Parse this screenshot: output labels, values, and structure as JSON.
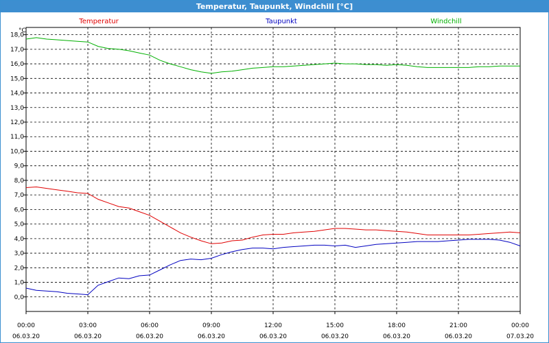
{
  "window": {
    "title": "Temperatur, Taupunkt, Windchill [°C]"
  },
  "chart_data": {
    "type": "line",
    "title": "Temperatur, Taupunkt, Windchill [°C]",
    "unit_label": "°C",
    "ylim": [
      -1.0,
      18.5
    ],
    "yticks": [
      {
        "value": 18,
        "label": "18,0"
      },
      {
        "value": 17,
        "label": "17,0"
      },
      {
        "value": 16,
        "label": "16,0"
      },
      {
        "value": 15,
        "label": "15,0"
      },
      {
        "value": 14,
        "label": "14,0"
      },
      {
        "value": 13,
        "label": "13,0"
      },
      {
        "value": 12,
        "label": "12,0"
      },
      {
        "value": 11,
        "label": "11,0"
      },
      {
        "value": 10,
        "label": "10,0"
      },
      {
        "value": 9,
        "label": "9,0"
      },
      {
        "value": 8,
        "label": "8,0"
      },
      {
        "value": 7,
        "label": "7,0"
      },
      {
        "value": 6,
        "label": "6,0"
      },
      {
        "value": 5,
        "label": "5,0"
      },
      {
        "value": 4,
        "label": "4,0"
      },
      {
        "value": 3,
        "label": "3,0"
      },
      {
        "value": 2,
        "label": "2,0"
      },
      {
        "value": 1,
        "label": "1,0"
      },
      {
        "value": 0,
        "label": "0,0"
      }
    ],
    "xlim": [
      0,
      24
    ],
    "xticks": [
      {
        "value": 0,
        "time": "00:00",
        "date": "06.03.20"
      },
      {
        "value": 3,
        "time": "03:00",
        "date": "06.03.20"
      },
      {
        "value": 6,
        "time": "06:00",
        "date": "06.03.20"
      },
      {
        "value": 9,
        "time": "09:00",
        "date": "06.03.20"
      },
      {
        "value": 12,
        "time": "12:00",
        "date": "06.03.20"
      },
      {
        "value": 15,
        "time": "15:00",
        "date": "06.03.20"
      },
      {
        "value": 18,
        "time": "18:00",
        "date": "06.03.20"
      },
      {
        "value": 21,
        "time": "21:00",
        "date": "06.03.20"
      },
      {
        "value": 24,
        "time": "00:00",
        "date": "07.03.20"
      }
    ],
    "grid": true,
    "legend_position": "top",
    "series": [
      {
        "name": "Temperatur",
        "color": "#e00000",
        "x": [
          0,
          0.5,
          1,
          1.5,
          2,
          2.5,
          3,
          3.5,
          4,
          4.5,
          5,
          5.5,
          6,
          6.5,
          7,
          7.5,
          8,
          8.5,
          9,
          9.5,
          10,
          10.5,
          11,
          11.5,
          12,
          12.5,
          13,
          13.5,
          14,
          14.5,
          15,
          15.5,
          16,
          16.5,
          17,
          17.5,
          18,
          18.5,
          19,
          19.5,
          20,
          20.5,
          21,
          21.5,
          22,
          22.5,
          23,
          23.5,
          24
        ],
        "values": [
          7.5,
          7.55,
          7.45,
          7.35,
          7.25,
          7.15,
          7.1,
          6.7,
          6.45,
          6.2,
          6.1,
          5.85,
          5.6,
          5.2,
          4.8,
          4.4,
          4.1,
          3.85,
          3.65,
          3.7,
          3.85,
          3.9,
          4.1,
          4.25,
          4.3,
          4.3,
          4.4,
          4.45,
          4.5,
          4.6,
          4.7,
          4.7,
          4.65,
          4.6,
          4.6,
          4.55,
          4.5,
          4.45,
          4.35,
          4.25,
          4.25,
          4.25,
          4.25,
          4.25,
          4.3,
          4.35,
          4.4,
          4.45,
          4.4
        ]
      },
      {
        "name": "Taupunkt",
        "color": "#0000c0",
        "x": [
          0,
          0.5,
          1,
          1.5,
          2,
          2.5,
          3,
          3.5,
          4,
          4.5,
          5,
          5.5,
          6,
          6.5,
          7,
          7.5,
          8,
          8.5,
          9,
          9.5,
          10,
          10.5,
          11,
          11.5,
          12,
          12.5,
          13,
          13.5,
          14,
          14.5,
          15,
          15.5,
          16,
          16.5,
          17,
          17.5,
          18,
          18.5,
          19,
          19.5,
          20,
          20.5,
          21,
          21.5,
          22,
          22.5,
          23,
          23.5,
          24
        ],
        "values": [
          0.6,
          0.45,
          0.4,
          0.35,
          0.25,
          0.2,
          0.15,
          0.8,
          1.05,
          1.3,
          1.25,
          1.45,
          1.5,
          1.85,
          2.2,
          2.5,
          2.6,
          2.55,
          2.65,
          2.9,
          3.1,
          3.25,
          3.35,
          3.35,
          3.3,
          3.4,
          3.45,
          3.5,
          3.55,
          3.55,
          3.5,
          3.55,
          3.4,
          3.5,
          3.6,
          3.65,
          3.7,
          3.75,
          3.8,
          3.8,
          3.8,
          3.85,
          3.9,
          3.95,
          3.95,
          3.95,
          3.9,
          3.75,
          3.5
        ]
      },
      {
        "name": "Windchill",
        "color": "#00b000",
        "x": [
          0,
          0.5,
          1,
          1.5,
          2,
          2.5,
          3,
          3.5,
          4,
          4.5,
          5,
          5.5,
          6,
          6.5,
          7,
          7.5,
          8,
          8.5,
          9,
          9.5,
          10,
          10.5,
          11,
          11.5,
          12,
          12.5,
          13,
          13.5,
          14,
          14.5,
          15,
          15.5,
          16,
          16.5,
          17,
          17.5,
          18,
          18.5,
          19,
          19.5,
          20,
          20.5,
          21,
          21.5,
          22,
          22.5,
          23,
          23.5,
          24
        ],
        "values": [
          17.7,
          17.8,
          17.7,
          17.65,
          17.6,
          17.55,
          17.5,
          17.2,
          17.05,
          17.0,
          16.9,
          16.75,
          16.6,
          16.25,
          16.0,
          15.8,
          15.6,
          15.45,
          15.35,
          15.45,
          15.5,
          15.6,
          15.7,
          15.75,
          15.8,
          15.8,
          15.85,
          15.9,
          15.95,
          16.0,
          16.05,
          16.0,
          16.0,
          15.95,
          15.95,
          15.9,
          15.95,
          15.9,
          15.8,
          15.75,
          15.75,
          15.75,
          15.75,
          15.75,
          15.8,
          15.8,
          15.85,
          15.85,
          15.85
        ]
      }
    ]
  }
}
